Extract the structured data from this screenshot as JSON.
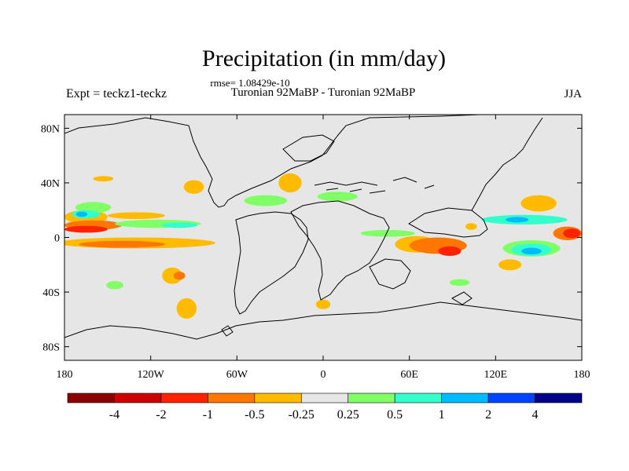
{
  "chart_data": {
    "type": "heatmap",
    "title": "Precipitation (in mm/day)",
    "subtitle": "Turonian  92MaBP - Turonian  92MaBP",
    "stat_label": "rmse= 1.08429e-10",
    "left_label": "Expt = teckz1-teckz",
    "right_label": "JJA",
    "xlim": [
      -180,
      180
    ],
    "ylim": [
      -90,
      90
    ],
    "x_ticks": [
      {
        "value": -180,
        "label": "180"
      },
      {
        "value": -120,
        "label": "120W"
      },
      {
        "value": -60,
        "label": "60W"
      },
      {
        "value": 0,
        "label": "0"
      },
      {
        "value": 60,
        "label": "60E"
      },
      {
        "value": 120,
        "label": "120E"
      },
      {
        "value": 180,
        "label": "180"
      }
    ],
    "y_ticks": [
      {
        "value": 80,
        "label": "80N"
      },
      {
        "value": 40,
        "label": "40N"
      },
      {
        "value": 0,
        "label": "0"
      },
      {
        "value": -40,
        "label": "40S"
      },
      {
        "value": -80,
        "label": "80S"
      }
    ],
    "colorbar": {
      "labels": [
        "-4",
        "-2",
        "-1",
        "-0.5",
        "-0.25",
        "0.25",
        "0.5",
        "1",
        "2",
        "4"
      ],
      "colors": [
        "#8b0000",
        "#cc0000",
        "#ff2200",
        "#ff7700",
        "#ffbb00",
        "#e6e6e6",
        "#80ff66",
        "#33ffcc",
        "#00bbff",
        "#0044ff",
        "#000088"
      ]
    },
    "anomaly_regions": [
      {
        "level": -0.25,
        "lon": -165,
        "lat": 15,
        "w": 30,
        "h": 10
      },
      {
        "level": -0.5,
        "lon": -160,
        "lat": 9,
        "w": 40,
        "h": 7
      },
      {
        "level": -1,
        "lon": -165,
        "lat": 6,
        "w": 30,
        "h": 5
      },
      {
        "level": -0.25,
        "lon": -130,
        "lat": -4,
        "w": 110,
        "h": 8
      },
      {
        "level": -0.5,
        "lon": -140,
        "lat": -5,
        "w": 60,
        "h": 5
      },
      {
        "level": -0.25,
        "lon": -130,
        "lat": 16,
        "w": 40,
        "h": 5
      },
      {
        "level": -0.25,
        "lon": -90,
        "lat": 37,
        "w": 14,
        "h": 10
      },
      {
        "level": -0.25,
        "lon": -105,
        "lat": -28,
        "w": 14,
        "h": 12
      },
      {
        "level": -0.5,
        "lon": -100,
        "lat": -28,
        "w": 8,
        "h": 6
      },
      {
        "level": -0.25,
        "lon": -95,
        "lat": -52,
        "w": 14,
        "h": 15
      },
      {
        "level": -0.25,
        "lon": -153,
        "lat": 43,
        "w": 14,
        "h": 4
      },
      {
        "level": -0.25,
        "lon": -23,
        "lat": 40,
        "w": 16,
        "h": 14
      },
      {
        "level": -0.25,
        "lon": 65,
        "lat": -5,
        "w": 30,
        "h": 12
      },
      {
        "level": -0.5,
        "lon": 80,
        "lat": -6,
        "w": 40,
        "h": 12
      },
      {
        "level": -1,
        "lon": 88,
        "lat": -10,
        "w": 16,
        "h": 7
      },
      {
        "level": -0.25,
        "lon": 150,
        "lat": 25,
        "w": 25,
        "h": 12
      },
      {
        "level": -0.5,
        "lon": 170,
        "lat": 3,
        "w": 20,
        "h": 10
      },
      {
        "level": -1,
        "lon": 173,
        "lat": 3,
        "w": 12,
        "h": 7
      },
      {
        "level": -0.25,
        "lon": 130,
        "lat": -20,
        "w": 16,
        "h": 8
      },
      {
        "level": -0.25,
        "lon": 0,
        "lat": -49,
        "w": 10,
        "h": 7
      },
      {
        "level": -0.25,
        "lon": 103,
        "lat": 8,
        "w": 8,
        "h": 5
      },
      {
        "level": 0.25,
        "lon": -160,
        "lat": 22,
        "w": 25,
        "h": 8
      },
      {
        "level": 0.5,
        "lon": -165,
        "lat": 17,
        "w": 20,
        "h": 6
      },
      {
        "level": 1,
        "lon": -168,
        "lat": 17,
        "w": 8,
        "h": 4
      },
      {
        "level": 0.25,
        "lon": -115,
        "lat": 10,
        "w": 60,
        "h": 6
      },
      {
        "level": 0.5,
        "lon": -100,
        "lat": 9,
        "w": 25,
        "h": 4
      },
      {
        "level": 0.25,
        "lon": -40,
        "lat": 27,
        "w": 30,
        "h": 8
      },
      {
        "level": 0.25,
        "lon": 10,
        "lat": 30,
        "w": 28,
        "h": 7
      },
      {
        "level": 0.25,
        "lon": 45,
        "lat": 3,
        "w": 38,
        "h": 5
      },
      {
        "level": 0.5,
        "lon": 140,
        "lat": 13,
        "w": 60,
        "h": 7
      },
      {
        "level": 1,
        "lon": 135,
        "lat": 13,
        "w": 16,
        "h": 4
      },
      {
        "level": 0.25,
        "lon": 145,
        "lat": -8,
        "w": 40,
        "h": 12
      },
      {
        "level": 0.5,
        "lon": 145,
        "lat": -9,
        "w": 28,
        "h": 9
      },
      {
        "level": 1,
        "lon": 145,
        "lat": -10,
        "w": 14,
        "h": 5
      },
      {
        "level": 0.25,
        "lon": -145,
        "lat": -35,
        "w": 12,
        "h": 6
      },
      {
        "level": 0.25,
        "lon": 95,
        "lat": -33,
        "w": 14,
        "h": 5
      }
    ]
  }
}
